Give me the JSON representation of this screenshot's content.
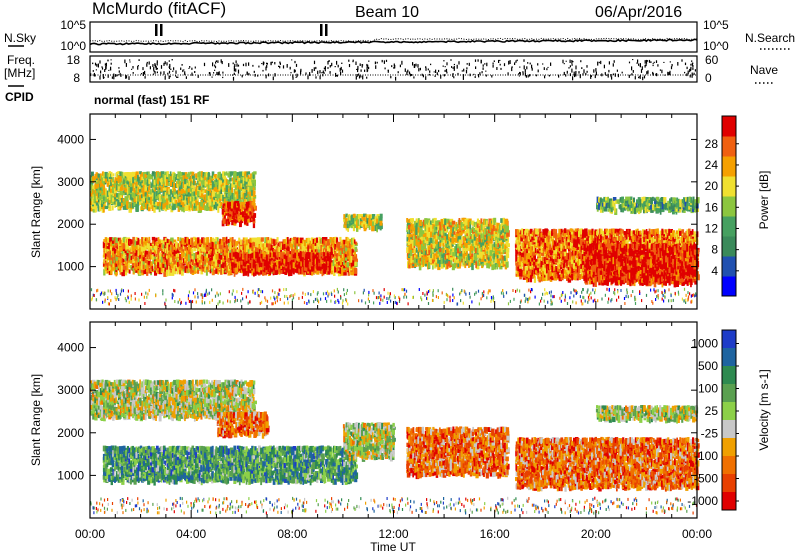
{
  "header": {
    "station": "McMurdo (fitACF)",
    "beam": "Beam 10",
    "date": "06/Apr/2016"
  },
  "noise_panel": {
    "left_label": "N.Sky",
    "right_label": "N.Search",
    "left_ticks": [
      "10^5",
      "10^0"
    ],
    "right_ticks": [
      "10^5",
      "10^0"
    ]
  },
  "freq_panel": {
    "left_label_1": "Freq.",
    "left_label_2": "[MHz]",
    "right_label": "Nave",
    "left_ticks": [
      "18",
      "8"
    ],
    "right_ticks": [
      "60",
      "0"
    ]
  },
  "cpid": {
    "label": "CPID",
    "text": "normal (fast) 151 RF"
  },
  "colors": {
    "power_scale": [
      "#0000ff",
      "#2050b0",
      "#3a8a5a",
      "#46a060",
      "#8cc63f",
      "#f0e030",
      "#f5a000",
      "#f06010",
      "#e00000"
    ],
    "velocity_scale": [
      "#1e3cc8",
      "#1e64a0",
      "#2e8a50",
      "#5aa050",
      "#8cd048",
      "#c8c8c8",
      "#f0a000",
      "#f07000",
      "#e84000",
      "#e00000"
    ]
  },
  "chart_data": [
    {
      "type": "heatmap",
      "name": "power",
      "xlabel": "",
      "ylabel": "Slant Range [km]",
      "xlim": [
        0,
        24
      ],
      "ylim": [
        0,
        4600
      ],
      "y_ticks": [
        "1000",
        "2000",
        "3000",
        "4000"
      ],
      "colorbar_label": "Power [dB]",
      "colorbar_ticks": [
        "4",
        "8",
        "12",
        "16",
        "20",
        "24",
        "28"
      ],
      "regions": [
        {
          "t0": 0.0,
          "t1": 6.5,
          "r0": 2350,
          "r1": 3200,
          "level": 0.55
        },
        {
          "t0": 0.5,
          "t1": 10.5,
          "r0": 850,
          "r1": 1650,
          "level": 0.75
        },
        {
          "t0": 5.5,
          "t1": 9.5,
          "r0": 850,
          "r1": 1300,
          "level": 0.95
        },
        {
          "t0": 5.2,
          "t1": 6.5,
          "r0": 2000,
          "r1": 2500,
          "level": 0.9
        },
        {
          "t0": 10.0,
          "t1": 11.5,
          "r0": 1900,
          "r1": 2200,
          "level": 0.55
        },
        {
          "t0": 12.5,
          "t1": 16.5,
          "r0": 1000,
          "r1": 2100,
          "level": 0.6
        },
        {
          "t0": 16.8,
          "t1": 24.0,
          "r0": 700,
          "r1": 1850,
          "level": 0.8
        },
        {
          "t0": 19.5,
          "t1": 24.0,
          "r0": 600,
          "r1": 1500,
          "level": 0.95
        },
        {
          "t0": 20.0,
          "t1": 24.0,
          "r0": 2300,
          "r1": 2600,
          "level": 0.4
        }
      ]
    },
    {
      "type": "heatmap",
      "name": "velocity",
      "xlabel": "Time UT",
      "ylabel": "Slant Range [km]",
      "xlim": [
        0,
        24
      ],
      "ylim": [
        0,
        4600
      ],
      "y_ticks": [
        "1000",
        "2000",
        "3000",
        "4000"
      ],
      "x_ticks": [
        "00:00",
        "04:00",
        "08:00",
        "12:00",
        "16:00",
        "20:00",
        "00:00"
      ],
      "colorbar_label": "Velocity [m s-1]",
      "colorbar_ticks": [
        "1000",
        "500",
        "100",
        "25",
        "-25",
        "-100",
        "-500",
        "-1000"
      ],
      "regions": [
        {
          "t0": 0.0,
          "t1": 6.5,
          "r0": 2350,
          "r1": 3200,
          "level": 0.5
        },
        {
          "t0": 0.5,
          "t1": 10.5,
          "r0": 850,
          "r1": 1650,
          "level": 0.3
        },
        {
          "t0": 5.0,
          "t1": 7.0,
          "r0": 1950,
          "r1": 2450,
          "level": 0.75
        },
        {
          "t0": 10.0,
          "t1": 12.0,
          "r0": 1400,
          "r1": 2200,
          "level": 0.5
        },
        {
          "t0": 12.5,
          "t1": 16.5,
          "r0": 1000,
          "r1": 2100,
          "level": 0.75
        },
        {
          "t0": 16.8,
          "t1": 24.0,
          "r0": 700,
          "r1": 1850,
          "level": 0.75
        },
        {
          "t0": 20.0,
          "t1": 24.0,
          "r0": 2300,
          "r1": 2600,
          "level": 0.5
        }
      ]
    }
  ]
}
